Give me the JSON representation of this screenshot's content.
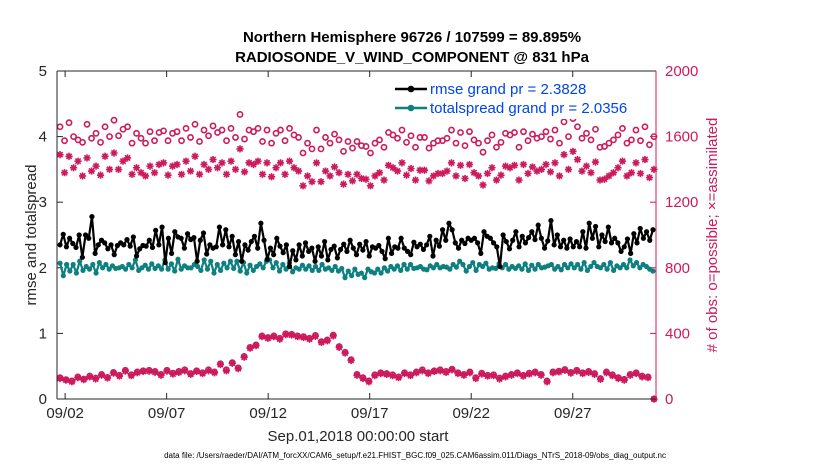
{
  "chart_data": {
    "type": "line",
    "title_line1": "Northern Hemisphere 96726 / 107599 = 89.895%",
    "title_line2": "RADIOSONDE_V_WIND_COMPONENT @ 831 hPa",
    "xlabel": "Sep.01,2018 00:00:00 start",
    "ylabel_left": "rmse and totalspread",
    "ylabel_right": "# of obs: o=possible; ×=assimilated",
    "x_ticks": [
      "09/02",
      "09/07",
      "09/12",
      "09/17",
      "09/22",
      "09/27"
    ],
    "x_tick_days": [
      2,
      7,
      12,
      17,
      22,
      27
    ],
    "xlim_days": [
      1.6,
      31.1
    ],
    "ylim_left": [
      0,
      5
    ],
    "y_ticks_left": [
      "0",
      "1",
      "2",
      "3",
      "4",
      "5"
    ],
    "ylim_right": [
      0,
      2000
    ],
    "y_ticks_right": [
      "0",
      "400",
      "800",
      "1200",
      "1600",
      "2000"
    ],
    "legend": {
      "location": "top-right",
      "rmse_label": "rmse grand pr = 2.3828",
      "spread_label": "totalspread grand pr = 2.0356"
    },
    "colors": {
      "rmse": "#000000",
      "spread": "#0e8080",
      "obs": "#cc1a5c",
      "legend_text": "#0044ee"
    },
    "x_start_day": 1.75,
    "x_step_days": 0.25,
    "series": [
      {
        "name": "rmse",
        "axis": "left",
        "values": [
          2.35,
          2.51,
          2.32,
          2.45,
          2.37,
          2.31,
          2.5,
          2.16,
          2.5,
          2.45,
          2.78,
          2.22,
          2.35,
          2.42,
          2.38,
          2.29,
          2.35,
          2.2,
          2.34,
          2.38,
          2.35,
          2.43,
          2.33,
          2.47,
          2.18,
          2.29,
          2.34,
          2.33,
          2.42,
          2.31,
          2.57,
          2.35,
          2.62,
          2.08,
          2.45,
          2.22,
          2.55,
          2.47,
          2.45,
          2.3,
          2.52,
          2.43,
          2.46,
          2.1,
          2.42,
          2.53,
          2.21,
          2.35,
          2.3,
          2.32,
          2.62,
          2.35,
          2.58,
          2.32,
          2.48,
          2.2,
          2.4,
          2.1,
          2.35,
          2.27,
          2.4,
          2.48,
          2.3,
          2.68,
          2.42,
          2.13,
          2.3,
          2.2,
          2.45,
          2.33,
          2.23,
          2.35,
          2.02,
          2.26,
          2.12,
          2.35,
          2.18,
          2.38,
          2.25,
          2.3,
          2.1,
          2.32,
          2.18,
          2.4,
          2.12,
          2.28,
          2.33,
          2.15,
          2.28,
          2.36,
          2.25,
          2.42,
          2.3,
          2.2,
          2.36,
          2.27,
          2.4,
          2.18,
          2.32,
          2.3,
          2.34,
          2.25,
          2.14,
          2.45,
          2.22,
          2.32,
          2.3,
          2.45,
          2.3,
          2.25,
          2.2,
          2.39,
          2.32,
          2.36,
          2.28,
          2.35,
          2.48,
          2.18,
          2.42,
          2.33,
          2.58,
          2.42,
          2.68,
          2.58,
          2.38,
          2.3,
          2.42,
          2.37,
          2.45,
          2.42,
          2.45,
          2.38,
          2.22,
          2.55,
          2.48,
          2.45,
          2.38,
          2.32,
          2.02,
          2.5,
          2.4,
          2.29,
          2.42,
          2.55,
          2.32,
          2.48,
          2.38,
          2.46,
          2.55,
          2.43,
          2.65,
          2.45,
          2.3,
          2.41,
          2.72,
          2.35,
          2.5,
          2.32,
          2.42,
          2.3,
          2.44,
          2.32,
          2.4,
          2.32,
          2.55,
          2.3,
          2.68,
          2.45,
          2.63,
          2.32,
          2.5,
          2.4,
          2.62,
          2.38,
          2.45,
          2.38,
          2.25,
          2.32,
          2.44,
          2.22,
          2.52,
          2.38,
          2.6,
          2.45,
          2.55,
          2.42,
          2.58
        ]
      },
      {
        "name": "totalspread",
        "axis": "left",
        "values": [
          2.07,
          1.88,
          2.05,
          1.95,
          2.05,
          1.92,
          2.1,
          1.96,
          2.02,
          1.98,
          2.05,
          1.92,
          2.08,
          2.0,
          2.05,
          1.98,
          2.03,
          1.99,
          2.0,
          2.02,
          1.98,
          2.05,
          2.0,
          2.12,
          1.96,
          2.0,
          2.04,
          1.98,
          2.06,
          1.99,
          2.03,
          1.98,
          2.12,
          1.98,
          2.06,
          1.95,
          2.13,
          1.98,
          2.03,
          2.0,
          2.0,
          2.05,
          2.02,
          1.96,
          2.12,
          1.98,
          2.1,
          1.92,
          2.05,
          1.96,
          2.07,
          2.0,
          2.1,
          1.99,
          2.1,
          1.95,
          2.08,
          1.92,
          2.04,
          1.96,
          2.02,
          2.06,
          2.0,
          2.1,
          2.12,
          2.0,
          2.08,
          1.95,
          2.05,
          1.98,
          2.07,
          1.94,
          2.0,
          1.98,
          2.04,
          1.98,
          2.03,
          1.96,
          2.02,
          1.96,
          2.05,
          1.98,
          2.0,
          1.96,
          2.02,
          1.95,
          1.99,
          1.85,
          1.95,
          1.88,
          1.98,
          1.9,
          1.92,
          1.85,
          1.98,
          1.94,
          1.92,
          1.98,
          1.92,
          2.0,
          1.95,
          2.02,
          1.98,
          2.03,
          1.96,
          2.05,
          1.98,
          2.05,
          1.99,
          2.0,
          2.02,
          1.98,
          1.97,
          2.03,
          2.0,
          2.05,
          2.0,
          2.02,
          2.01,
          1.98,
          2.05,
          2.01,
          2.1,
          2.05,
          1.95,
          2.02,
          2.08,
          1.96,
          2.05,
          2.02,
          2.07,
          1.98,
          2.0,
          1.99,
          2.06,
          2.0,
          2.05,
          1.98,
          2.02,
          1.99,
          2.03,
          1.98,
          2.06,
          1.96,
          2.04,
          1.98,
          2.05,
          2.0,
          2.01,
          2.03,
          2.05,
          1.98,
          2.02,
          1.97,
          2.05,
          2.0,
          2.06,
          2.0,
          2.05,
          1.98,
          2.08,
          1.96,
          2.02,
          2.08,
          2.02,
          2.0,
          2.05,
          1.98,
          2.08,
          1.96,
          2.03,
          2.0,
          2.05,
          2.0,
          2.12,
          2.03,
          2.08,
          2.0,
          2.05,
          2.02,
          1.98,
          1.95
        ]
      },
      {
        "name": "obs_possible",
        "axis": "right",
        "marker": "circle",
        "values": [
          1660,
          1575,
          1685,
          1600,
          1580,
          1565,
          1675,
          1590,
          1620,
          1565,
          1660,
          1600,
          1700,
          1605,
          1645,
          1660,
          1560,
          1620,
          1590,
          1560,
          1630,
          1575,
          1625,
          1635,
          1575,
          1620,
          1630,
          1575,
          1650,
          1595,
          1675,
          1570,
          1640,
          1605,
          1665,
          1625,
          1640,
          1575,
          1650,
          1595,
          1735,
          1585,
          1640,
          1630,
          1650,
          1570,
          1640,
          1560,
          1620,
          1640,
          1575,
          1650,
          1610,
          1595,
          1500,
          1560,
          1525,
          1640,
          1525,
          1595,
          1560,
          1615,
          1580,
          1510,
          1570,
          1530,
          1570,
          1545,
          1540,
          1500,
          1560,
          1580,
          1535,
          1625,
          1610,
          1590,
          1640,
          1565,
          1605,
          1535,
          1595,
          1595,
          1530,
          1560,
          1575,
          1575,
          1590,
          1640,
          1560,
          1625,
          1545,
          1630,
          1580,
          1560,
          1505,
          1575,
          1610,
          1535,
          1565,
          1620,
          1610,
          1625,
          1535,
          1630,
          1575,
          1615,
          1590,
          1600,
          1630,
          1585,
          1640,
          1560,
          1690,
          1600,
          1710,
          1660,
          1590,
          1620,
          1580,
          1645,
          1535,
          1540,
          1560,
          1580,
          1610,
          1650,
          1560,
          1580,
          1640,
          1575,
          1660,
          1550,
          1600
        ]
      },
      {
        "name": "obs_assimilated",
        "axis": "right",
        "marker": "asterisk",
        "values": [
          1490,
          1380,
          1480,
          1410,
          1450,
          1360,
          1470,
          1390,
          1420,
          1365,
          1480,
          1400,
          1500,
          1400,
          1450,
          1470,
          1370,
          1410,
          1380,
          1360,
          1420,
          1380,
          1430,
          1440,
          1365,
          1420,
          1430,
          1370,
          1450,
          1390,
          1480,
          1370,
          1430,
          1400,
          1460,
          1410,
          1440,
          1370,
          1450,
          1400,
          1525,
          1385,
          1440,
          1430,
          1450,
          1370,
          1440,
          1355,
          1410,
          1440,
          1370,
          1450,
          1410,
          1390,
          1300,
          1360,
          1325,
          1440,
          1325,
          1390,
          1360,
          1415,
          1380,
          1310,
          1370,
          1330,
          1370,
          1345,
          1340,
          1300,
          1360,
          1380,
          1335,
          1425,
          1410,
          1390,
          1440,
          1365,
          1405,
          1335,
          1395,
          1395,
          1330,
          1360,
          1375,
          1375,
          1390,
          1440,
          1360,
          1425,
          1345,
          1430,
          1380,
          1360,
          1305,
          1375,
          1410,
          1335,
          1365,
          1420,
          1410,
          1425,
          1335,
          1430,
          1375,
          1415,
          1390,
          1400,
          1430,
          1385,
          1440,
          1360,
          1490,
          1400,
          1510,
          1460,
          1390,
          1420,
          1380,
          1445,
          1335,
          1340,
          1360,
          1380,
          1410,
          1450,
          1360,
          1380,
          1440,
          1375,
          1460,
          1350,
          1400
        ]
      },
      {
        "name": "obs_low_possible",
        "axis": "right",
        "marker": "circle",
        "values": [
          130,
          118,
          110,
          135,
          122,
          140,
          128,
          150,
          132,
          162,
          145,
          175,
          148,
          165,
          172,
          175,
          168,
          150,
          175,
          158,
          168,
          178,
          155,
          172,
          160,
          178,
          165,
          215,
          178,
          222,
          190,
          260,
          315,
          330,
          385,
          375,
          385,
          370,
          398,
          395,
          385,
          380,
          370,
          388,
          350,
          360,
          390,
          320,
          285,
          240,
          150,
          130,
          110,
          148,
          160,
          155,
          148,
          135,
          160,
          148,
          165,
          178,
          160,
          172,
          178,
          168,
          182,
          160,
          150,
          165,
          130,
          158,
          145,
          148,
          128,
          140,
          150,
          160,
          145,
          158,
          165,
          150,
          110,
          165,
          170,
          180,
          162,
          175,
          160,
          168,
          155,
          125,
          165,
          148,
          130,
          120,
          150,
          160,
          140,
          135,
          0
        ]
      },
      {
        "name": "obs_low_assimilated",
        "axis": "right",
        "marker": "asterisk",
        "values": [
          125,
          115,
          105,
          130,
          118,
          135,
          122,
          145,
          128,
          158,
          140,
          170,
          142,
          160,
          168,
          170,
          163,
          145,
          170,
          152,
          162,
          172,
          150,
          168,
          155,
          172,
          160,
          210,
          172,
          218,
          185,
          255,
          310,
          325,
          380,
          370,
          380,
          365,
          392,
          390,
          380,
          375,
          365,
          382,
          345,
          355,
          385,
          315,
          280,
          235,
          145,
          125,
          105,
          142,
          155,
          150,
          142,
          130,
          155,
          142,
          160,
          172,
          155,
          168,
          172,
          162,
          178,
          155,
          145,
          160,
          125,
          152,
          140,
          142,
          122,
          135,
          145,
          155,
          140,
          152,
          160,
          145,
          105,
          160,
          165,
          175,
          158,
          170,
          155,
          162,
          150,
          120,
          160,
          142,
          125,
          115,
          145,
          155,
          135,
          130,
          0
        ]
      }
    ]
  },
  "footer": {
    "data_file": "data file: /Users/raeder/DAI/ATM_forcXX/CAM6_setup/f.e21.FHIST_BGC.f09_025.CAM6assim.011/Diags_NTrS_2018-09/obs_diag_output.nc"
  }
}
